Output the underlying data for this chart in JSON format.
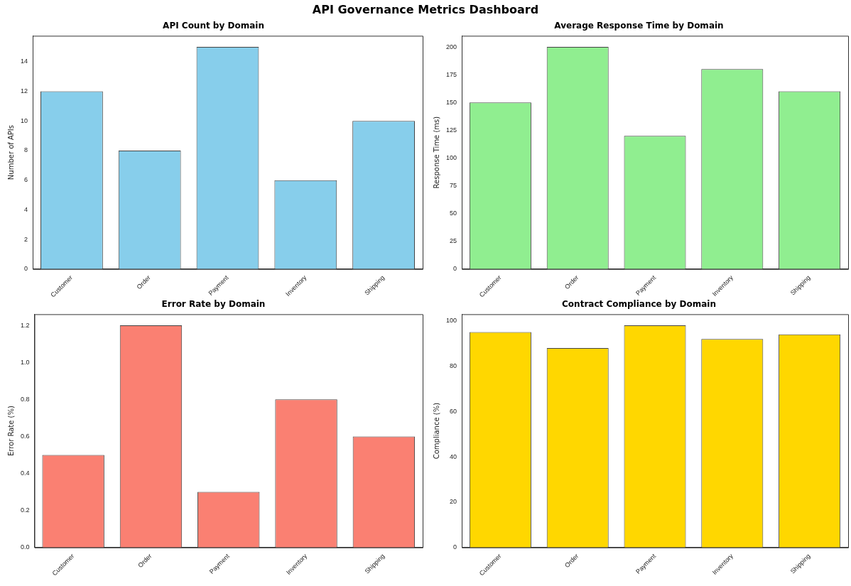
{
  "chart_data": [
    {
      "type": "bar",
      "title": "API Count by Domain",
      "ylabel": "Number of APIs",
      "annotations": [
        "API Governance Metrics Dashboard"
      ],
      "categories": [
        "Customer",
        "Order",
        "Payment",
        "Inventory",
        "Shipping"
      ],
      "values": [
        12,
        8,
        15,
        6,
        10
      ],
      "color": "#87ceeb",
      "ylim": [
        0,
        15.75
      ],
      "yticks": [
        0,
        2,
        4,
        6,
        8,
        10,
        12,
        14
      ],
      "grid": false,
      "legend": false
    },
    {
      "type": "bar",
      "title": "Average Response Time by Domain",
      "ylabel": "Response Time (ms)",
      "categories": [
        "Customer",
        "Order",
        "Payment",
        "Inventory",
        "Shipping"
      ],
      "values": [
        150,
        200,
        120,
        180,
        160
      ],
      "color": "#90ee90",
      "ylim": [
        0,
        210
      ],
      "yticks": [
        0,
        25,
        50,
        75,
        100,
        125,
        150,
        175,
        200
      ],
      "grid": false,
      "legend": false
    },
    {
      "type": "bar",
      "title": "Error Rate by Domain",
      "ylabel": "Error Rate (%)",
      "categories": [
        "Customer",
        "Order",
        "Payment",
        "Inventory",
        "Shipping"
      ],
      "values": [
        0.5,
        1.2,
        0.3,
        0.8,
        0.6
      ],
      "color": "#fa8072",
      "ylim": [
        0,
        1.26
      ],
      "yticks": [
        {
          "value": 0,
          "label": "0.0"
        },
        {
          "value": 0.2,
          "label": "0.2"
        },
        {
          "value": 0.4,
          "label": "0.4"
        },
        {
          "value": 0.6,
          "label": "0.6"
        },
        {
          "value": 0.8,
          "label": "0.8"
        },
        {
          "value": 1,
          "label": "1.0"
        },
        {
          "value": 1.2,
          "label": "1.2"
        }
      ],
      "grid": false,
      "legend": false
    },
    {
      "type": "bar",
      "title": "Contract Compliance by Domain",
      "ylabel": "Compliance (%)",
      "categories": [
        "Customer",
        "Order",
        "Payment",
        "Inventory",
        "Shipping"
      ],
      "values": [
        95,
        88,
        98,
        92,
        94
      ],
      "color": "#ffd700",
      "ylim": [
        0,
        102.9
      ],
      "yticks": [
        0,
        20,
        40,
        60,
        80,
        100
      ],
      "grid": false,
      "legend": false
    }
  ]
}
